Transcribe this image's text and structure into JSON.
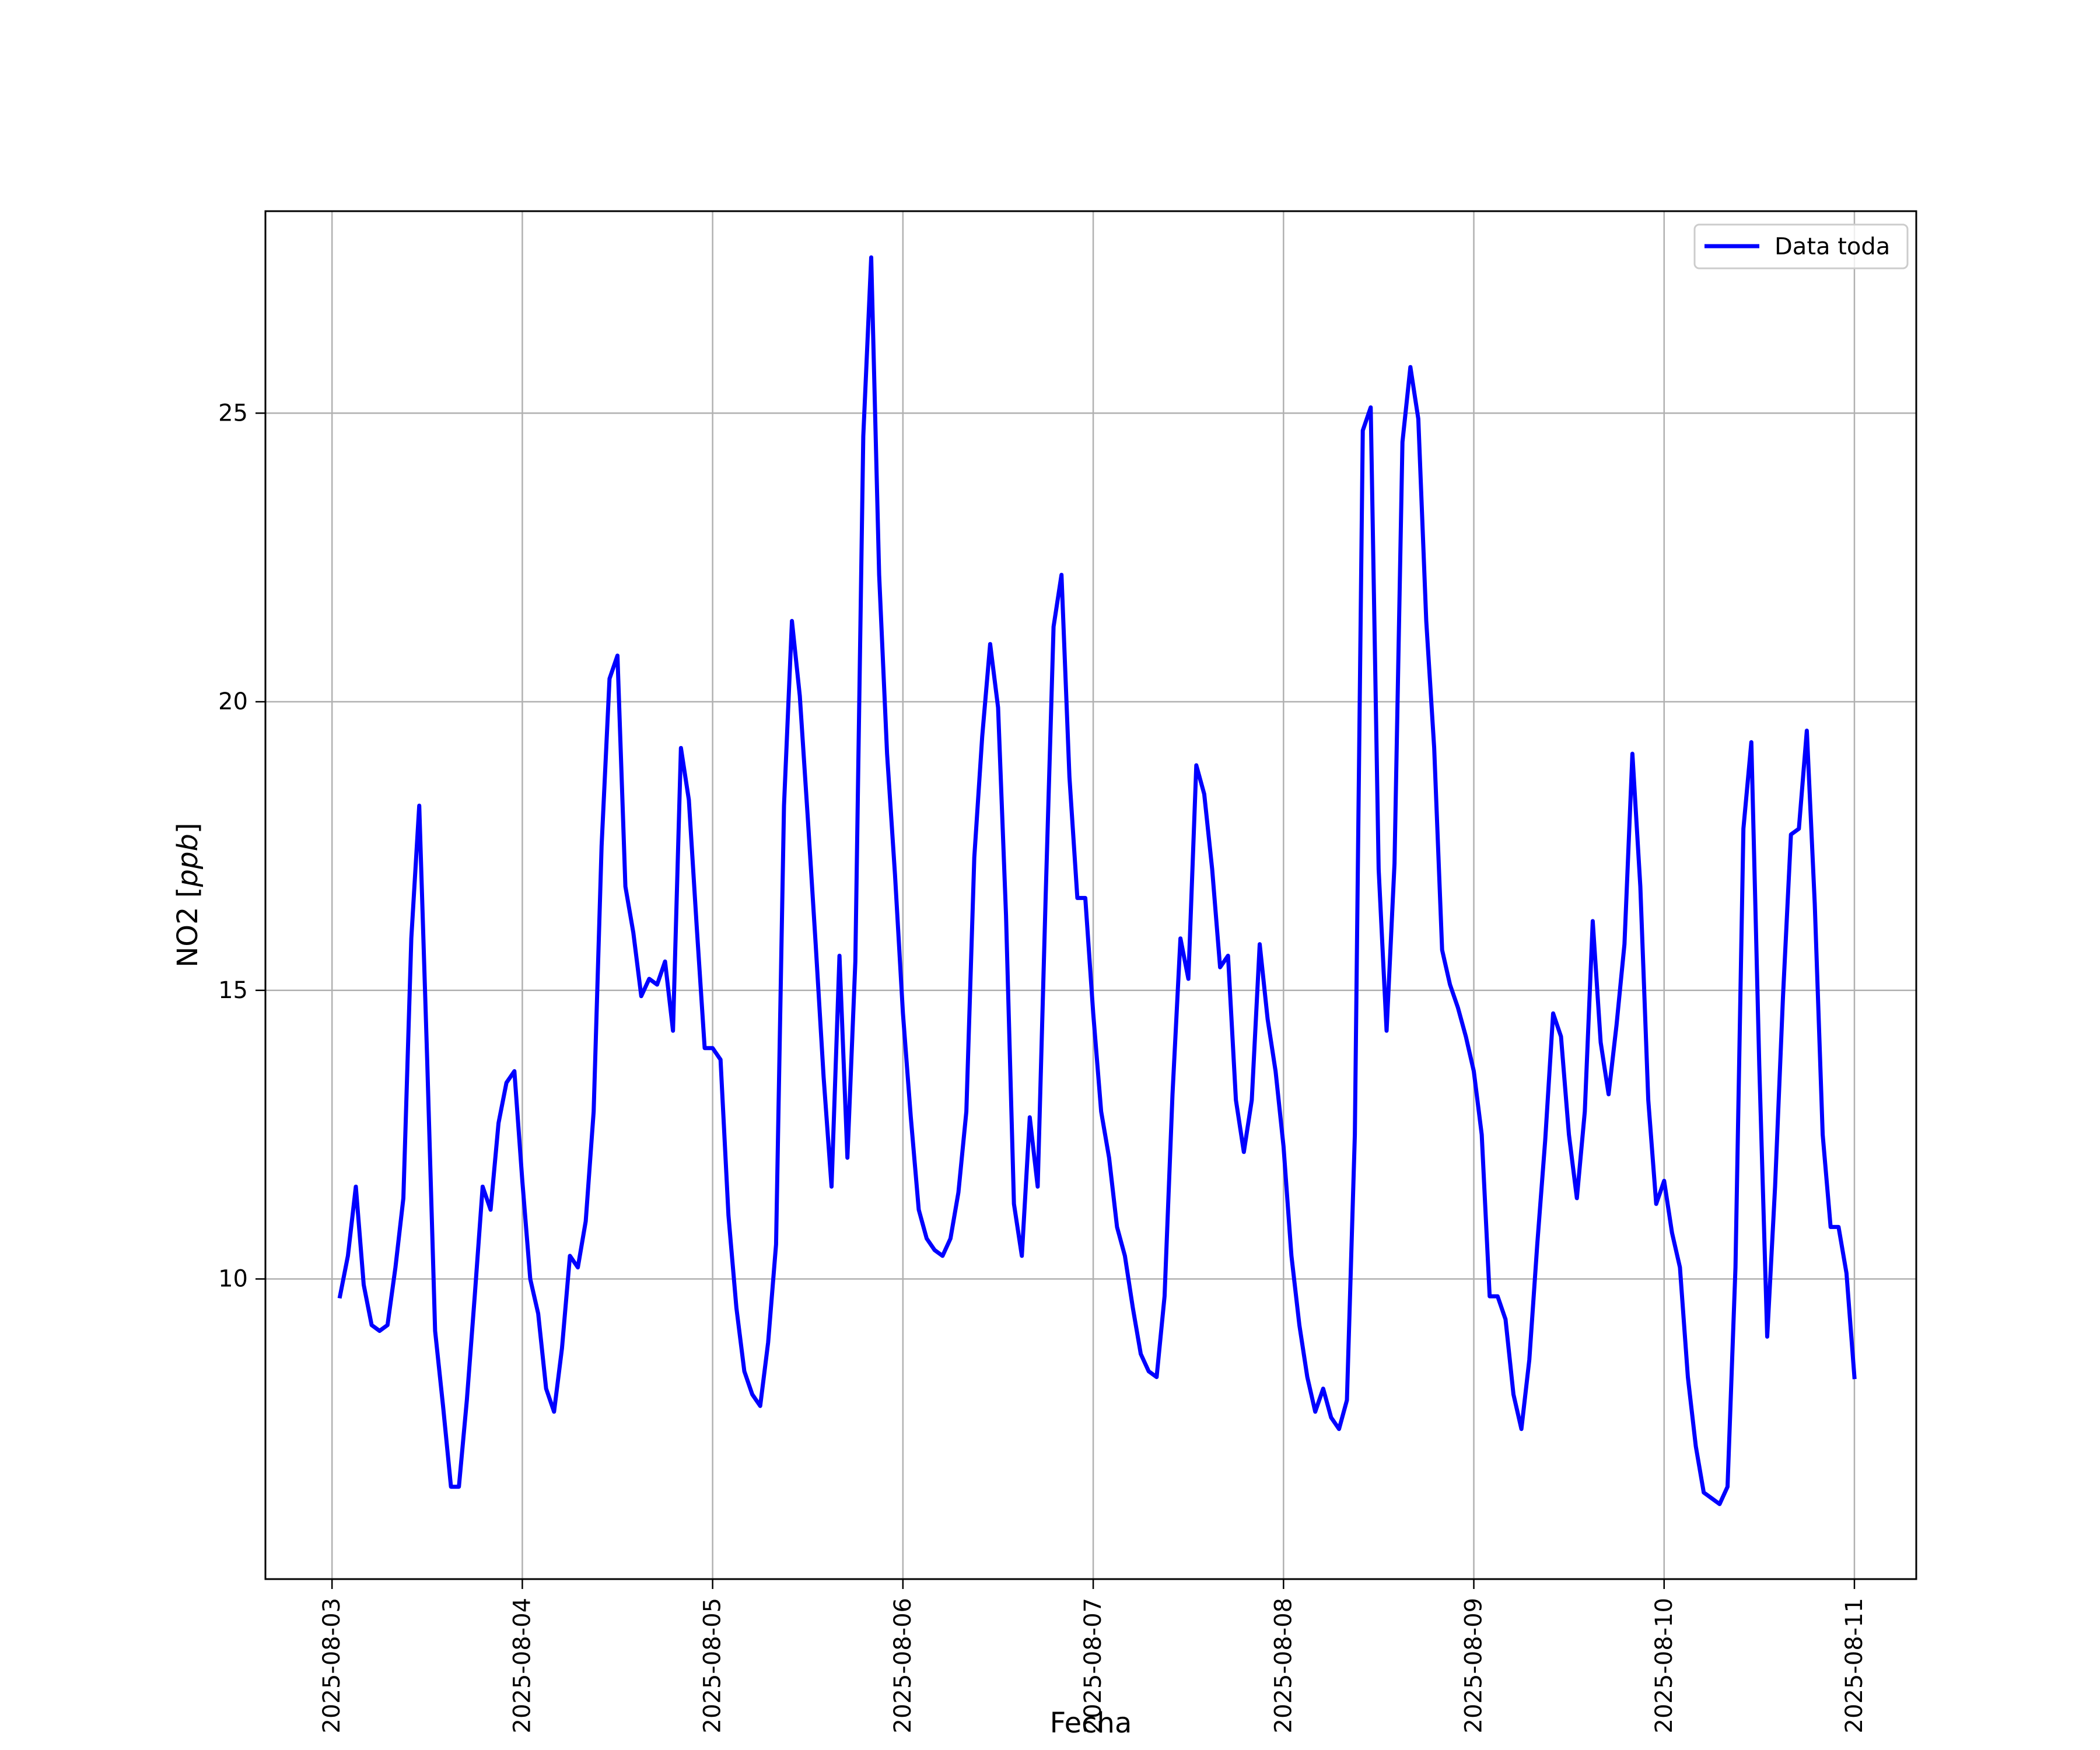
{
  "chart_data": {
    "type": "line",
    "title": "",
    "xlabel": "Fecha",
    "ylabel": "NO2 [ppb]",
    "ylabel_parts": {
      "base": "NO2 [",
      "italic": "ppb",
      "close": "]"
    },
    "x_axis": {
      "kind": "date",
      "range": [
        "2025-08-02T15:36",
        "2025-08-11T07:48"
      ],
      "tick_labels": [
        "2025-08-03",
        "2025-08-04",
        "2025-08-05",
        "2025-08-06",
        "2025-08-07",
        "2025-08-08",
        "2025-08-09",
        "2025-08-10",
        "2025-08-11"
      ]
    },
    "y_axis": {
      "range": [
        4.8,
        28.5
      ],
      "ticks": [
        10,
        15,
        20,
        25
      ]
    },
    "grid": true,
    "legend": {
      "placement": "top-right"
    },
    "series": [
      {
        "name": "Data toda",
        "color": "#0000ff",
        "x": [
          "2025-08-03T01:00",
          "2025-08-03T02:00",
          "2025-08-03T03:00",
          "2025-08-03T04:00",
          "2025-08-03T05:00",
          "2025-08-03T06:00",
          "2025-08-03T07:00",
          "2025-08-03T08:00",
          "2025-08-03T09:00",
          "2025-08-03T10:00",
          "2025-08-03T11:00",
          "2025-08-03T12:00",
          "2025-08-03T13:00",
          "2025-08-03T14:00",
          "2025-08-03T15:00",
          "2025-08-03T16:00",
          "2025-08-03T17:00",
          "2025-08-03T18:00",
          "2025-08-03T19:00",
          "2025-08-03T20:00",
          "2025-08-03T21:00",
          "2025-08-03T22:00",
          "2025-08-03T23:00",
          "2025-08-04T00:00",
          "2025-08-04T01:00",
          "2025-08-04T02:00",
          "2025-08-04T03:00",
          "2025-08-04T04:00",
          "2025-08-04T05:00",
          "2025-08-04T06:00",
          "2025-08-04T07:00",
          "2025-08-04T08:00",
          "2025-08-04T09:00",
          "2025-08-04T10:00",
          "2025-08-04T11:00",
          "2025-08-04T12:00",
          "2025-08-04T13:00",
          "2025-08-04T14:00",
          "2025-08-04T15:00",
          "2025-08-04T16:00",
          "2025-08-04T17:00",
          "2025-08-04T18:00",
          "2025-08-04T19:00",
          "2025-08-04T20:00",
          "2025-08-04T21:00",
          "2025-08-04T22:00",
          "2025-08-04T23:00",
          "2025-08-05T00:00",
          "2025-08-05T01:00",
          "2025-08-05T02:00",
          "2025-08-05T03:00",
          "2025-08-05T04:00",
          "2025-08-05T05:00",
          "2025-08-05T06:00",
          "2025-08-05T07:00",
          "2025-08-05T08:00",
          "2025-08-05T09:00",
          "2025-08-05T10:00",
          "2025-08-05T11:00",
          "2025-08-05T12:00",
          "2025-08-05T13:00",
          "2025-08-05T14:00",
          "2025-08-05T15:00",
          "2025-08-05T16:00",
          "2025-08-05T17:00",
          "2025-08-05T18:00",
          "2025-08-05T19:00",
          "2025-08-05T20:00",
          "2025-08-05T21:00",
          "2025-08-05T22:00",
          "2025-08-05T23:00",
          "2025-08-06T00:00",
          "2025-08-06T01:00",
          "2025-08-06T02:00",
          "2025-08-06T03:00",
          "2025-08-06T04:00",
          "2025-08-06T05:00",
          "2025-08-06T06:00",
          "2025-08-06T07:00",
          "2025-08-06T08:00",
          "2025-08-06T09:00",
          "2025-08-06T10:00",
          "2025-08-06T11:00",
          "2025-08-06T12:00",
          "2025-08-06T13:00",
          "2025-08-06T14:00",
          "2025-08-06T15:00",
          "2025-08-06T16:00",
          "2025-08-06T17:00",
          "2025-08-06T18:00",
          "2025-08-06T19:00",
          "2025-08-06T20:00",
          "2025-08-06T21:00",
          "2025-08-06T22:00",
          "2025-08-06T23:00",
          "2025-08-07T00:00",
          "2025-08-07T01:00",
          "2025-08-07T02:00",
          "2025-08-07T03:00",
          "2025-08-07T04:00",
          "2025-08-07T05:00",
          "2025-08-07T06:00",
          "2025-08-07T07:00",
          "2025-08-07T08:00",
          "2025-08-07T09:00",
          "2025-08-07T10:00",
          "2025-08-07T11:00",
          "2025-08-07T12:00",
          "2025-08-07T13:00",
          "2025-08-07T14:00",
          "2025-08-07T15:00",
          "2025-08-07T16:00",
          "2025-08-07T17:00",
          "2025-08-07T18:00",
          "2025-08-07T19:00",
          "2025-08-07T20:00",
          "2025-08-07T21:00",
          "2025-08-07T22:00",
          "2025-08-07T23:00",
          "2025-08-08T00:00",
          "2025-08-08T01:00",
          "2025-08-08T02:00",
          "2025-08-08T03:00",
          "2025-08-08T04:00",
          "2025-08-08T05:00",
          "2025-08-08T06:00",
          "2025-08-08T07:00",
          "2025-08-08T08:00",
          "2025-08-08T09:00",
          "2025-08-08T10:00",
          "2025-08-08T11:00",
          "2025-08-08T12:00",
          "2025-08-08T13:00",
          "2025-08-08T14:00",
          "2025-08-08T15:00",
          "2025-08-08T16:00",
          "2025-08-08T17:00",
          "2025-08-08T18:00",
          "2025-08-08T19:00",
          "2025-08-08T20:00",
          "2025-08-08T21:00",
          "2025-08-08T22:00",
          "2025-08-08T23:00",
          "2025-08-09T00:00",
          "2025-08-09T01:00",
          "2025-08-09T02:00",
          "2025-08-09T03:00",
          "2025-08-09T04:00",
          "2025-08-09T05:00",
          "2025-08-09T06:00",
          "2025-08-09T07:00",
          "2025-08-09T08:00",
          "2025-08-09T09:00",
          "2025-08-09T10:00",
          "2025-08-09T11:00",
          "2025-08-09T12:00",
          "2025-08-09T13:00",
          "2025-08-09T14:00",
          "2025-08-09T15:00",
          "2025-08-09T16:00",
          "2025-08-09T17:00",
          "2025-08-09T18:00",
          "2025-08-09T19:00",
          "2025-08-09T20:00",
          "2025-08-09T21:00",
          "2025-08-09T22:00",
          "2025-08-09T23:00",
          "2025-08-10T00:00",
          "2025-08-10T01:00",
          "2025-08-10T02:00",
          "2025-08-10T03:00",
          "2025-08-10T04:00",
          "2025-08-10T05:00",
          "2025-08-10T06:00",
          "2025-08-10T07:00",
          "2025-08-10T08:00",
          "2025-08-10T09:00",
          "2025-08-10T10:00",
          "2025-08-10T11:00",
          "2025-08-10T12:00",
          "2025-08-10T13:00",
          "2025-08-10T14:00",
          "2025-08-10T15:00",
          "2025-08-10T16:00",
          "2025-08-10T17:00",
          "2025-08-10T18:00",
          "2025-08-10T19:00",
          "2025-08-10T20:00",
          "2025-08-10T21:00",
          "2025-08-10T22:00",
          "2025-08-10T23:00",
          "2025-08-11T00:00"
        ],
        "y": [
          9.7,
          10.4,
          11.6,
          9.9,
          9.2,
          9.1,
          9.2,
          10.2,
          11.4,
          15.9,
          18.2,
          13.8,
          9.1,
          7.8,
          6.4,
          6.4,
          7.9,
          9.7,
          11.6,
          11.2,
          12.7,
          13.4,
          13.6,
          11.7,
          10.0,
          9.4,
          8.1,
          7.7,
          8.8,
          10.4,
          10.2,
          11.0,
          12.9,
          17.5,
          20.4,
          20.8,
          16.8,
          16.0,
          14.9,
          15.2,
          15.1,
          15.5,
          14.3,
          19.2,
          18.3,
          16.1,
          14.0,
          14.0,
          13.8,
          11.1,
          9.5,
          8.4,
          8.0,
          7.8,
          8.9,
          10.6,
          18.2,
          21.4,
          20.1,
          18.0,
          15.8,
          13.5,
          11.6,
          15.6,
          12.1,
          15.5,
          24.6,
          27.7,
          22.2,
          19.1,
          17.0,
          14.6,
          12.8,
          11.2,
          10.7,
          10.5,
          10.4,
          10.7,
          11.5,
          12.9,
          17.3,
          19.4,
          21.0,
          19.9,
          16.3,
          11.3,
          10.4,
          12.8,
          11.6,
          16.6,
          21.3,
          22.2,
          18.7,
          16.6,
          16.6,
          14.6,
          12.9,
          12.1,
          10.9,
          10.4,
          9.5,
          8.7,
          8.4,
          8.3,
          9.7,
          13.2,
          15.9,
          15.2,
          18.9,
          18.4,
          17.1,
          15.4,
          15.6,
          13.1,
          12.2,
          13.1,
          15.8,
          14.5,
          13.6,
          12.3,
          10.4,
          9.2,
          8.3,
          7.7,
          8.1,
          7.6,
          7.4,
          7.9,
          12.5,
          24.7,
          25.1,
          17.1,
          14.3,
          17.2,
          24.5,
          25.8,
          24.9,
          21.4,
          19.2,
          15.7,
          15.1,
          14.7,
          14.2,
          13.6,
          12.5,
          9.7,
          9.7,
          9.3,
          8.0,
          7.4,
          8.6,
          10.6,
          12.4,
          14.6,
          14.2,
          12.5,
          11.4,
          12.9,
          16.2,
          14.1,
          13.2,
          14.4,
          15.8,
          19.1,
          16.8,
          13.1,
          11.3,
          11.7,
          10.8,
          10.2,
          8.3,
          7.1,
          6.3,
          6.2,
          6.1,
          6.4,
          10.2,
          17.8,
          19.3,
          13.7,
          9.0,
          11.6,
          14.9,
          17.7,
          17.8,
          19.5,
          16.5,
          12.5,
          10.9,
          10.9,
          10.1,
          8.3
        ]
      }
    ]
  }
}
